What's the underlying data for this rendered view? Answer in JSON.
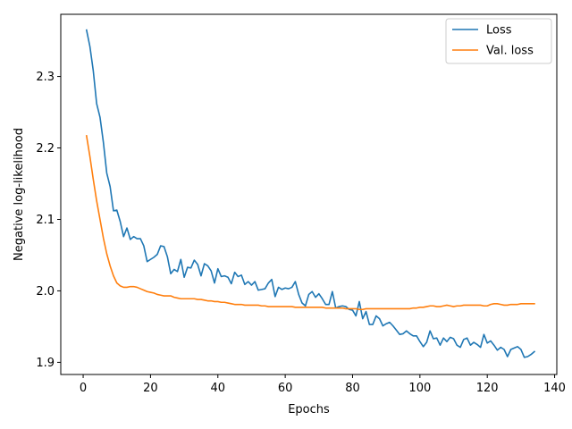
{
  "chart_data": {
    "type": "line",
    "xlabel": "Epochs",
    "ylabel": "Negative log-likelihood",
    "xlim": [
      -6.65,
      140.65
    ],
    "ylim": [
      1.883,
      2.387
    ],
    "xticks": [
      0,
      20,
      40,
      60,
      80,
      100,
      120,
      140
    ],
    "yticks": [
      1.9,
      2.0,
      2.1,
      2.2,
      2.3
    ],
    "ytick_labels": [
      "1.9",
      "2.0",
      "2.1",
      "2.2",
      "2.3"
    ],
    "grid": false,
    "legend_position": "top-right",
    "series": [
      {
        "name": "Loss",
        "color": "#1f77b4",
        "x": [
          1,
          2,
          3,
          4,
          5,
          6,
          7,
          8,
          9,
          10,
          11,
          12,
          13,
          14,
          15,
          16,
          17,
          18,
          19,
          20,
          21,
          22,
          23,
          24,
          25,
          26,
          27,
          28,
          29,
          30,
          31,
          32,
          33,
          34,
          35,
          36,
          37,
          38,
          39,
          40,
          41,
          42,
          43,
          44,
          45,
          46,
          47,
          48,
          49,
          50,
          51,
          52,
          53,
          54,
          55,
          56,
          57,
          58,
          59,
          60,
          61,
          62,
          63,
          64,
          65,
          66,
          67,
          68,
          69,
          70,
          71,
          72,
          73,
          74,
          75,
          76,
          77,
          78,
          79,
          80,
          81,
          82,
          83,
          84,
          85,
          86,
          87,
          88,
          89,
          90,
          91,
          92,
          93,
          94,
          95,
          96,
          97,
          98,
          99,
          100,
          101,
          102,
          103,
          104,
          105,
          106,
          107,
          108,
          109,
          110,
          111,
          112,
          113,
          114,
          115,
          116,
          117,
          118,
          119,
          120,
          121,
          122,
          123,
          124,
          125,
          126,
          127,
          128,
          129,
          130,
          131,
          132,
          133,
          134
        ],
        "values": [
          2.365,
          2.342,
          2.308,
          2.262,
          2.243,
          2.208,
          2.165,
          2.146,
          2.112,
          2.113,
          2.097,
          2.076,
          2.088,
          2.072,
          2.076,
          2.073,
          2.073,
          2.063,
          2.041,
          2.044,
          2.047,
          2.051,
          2.063,
          2.062,
          2.048,
          2.024,
          2.03,
          2.027,
          2.044,
          2.019,
          2.033,
          2.032,
          2.043,
          2.037,
          2.021,
          2.038,
          2.035,
          2.028,
          2.011,
          2.031,
          2.02,
          2.021,
          2.019,
          2.01,
          2.026,
          2.02,
          2.022,
          2.009,
          2.013,
          2.008,
          2.013,
          2.001,
          2.002,
          2.003,
          2.011,
          2.016,
          1.992,
          2.005,
          2.002,
          2.004,
          2.003,
          2.005,
          2.013,
          1.995,
          1.983,
          1.979,
          1.995,
          1.999,
          1.991,
          1.996,
          1.989,
          1.981,
          1.981,
          1.999,
          1.976,
          1.978,
          1.979,
          1.978,
          1.974,
          1.973,
          1.965,
          1.985,
          1.961,
          1.971,
          1.953,
          1.953,
          1.965,
          1.961,
          1.951,
          1.954,
          1.956,
          1.951,
          1.945,
          1.939,
          1.94,
          1.944,
          1.94,
          1.937,
          1.937,
          1.929,
          1.922,
          1.928,
          1.944,
          1.933,
          1.934,
          1.924,
          1.934,
          1.929,
          1.935,
          1.933,
          1.924,
          1.921,
          1.932,
          1.934,
          1.924,
          1.928,
          1.925,
          1.921,
          1.939,
          1.927,
          1.93,
          1.924,
          1.917,
          1.921,
          1.918,
          1.908,
          1.918,
          1.92,
          1.922,
          1.918,
          1.907,
          1.908,
          1.911,
          1.915
        ]
      },
      {
        "name": "Val. loss",
        "color": "#ff7f0e",
        "x": [
          1,
          2,
          3,
          4,
          5,
          6,
          7,
          8,
          9,
          10,
          11,
          12,
          13,
          14,
          15,
          16,
          17,
          18,
          19,
          20,
          21,
          22,
          23,
          24,
          25,
          26,
          27,
          28,
          29,
          30,
          31,
          32,
          33,
          34,
          35,
          36,
          37,
          38,
          39,
          40,
          41,
          42,
          43,
          44,
          45,
          46,
          47,
          48,
          49,
          50,
          51,
          52,
          53,
          54,
          55,
          56,
          57,
          58,
          59,
          60,
          61,
          62,
          63,
          64,
          65,
          66,
          67,
          68,
          69,
          70,
          71,
          72,
          73,
          74,
          75,
          76,
          77,
          78,
          79,
          80,
          81,
          82,
          83,
          84,
          85,
          86,
          87,
          88,
          89,
          90,
          91,
          92,
          93,
          94,
          95,
          96,
          97,
          98,
          99,
          100,
          101,
          102,
          103,
          104,
          105,
          106,
          107,
          108,
          109,
          110,
          111,
          112,
          113,
          114,
          115,
          116,
          117,
          118,
          119,
          120,
          121,
          122,
          123,
          124,
          125,
          126,
          127,
          128,
          129,
          130,
          131,
          132,
          133,
          134
        ],
        "values": [
          2.217,
          2.188,
          2.156,
          2.126,
          2.1,
          2.074,
          2.052,
          2.035,
          2.021,
          2.011,
          2.007,
          2.005,
          2.005,
          2.006,
          2.006,
          2.005,
          2.003,
          2.001,
          1.999,
          1.998,
          1.997,
          1.995,
          1.994,
          1.993,
          1.993,
          1.993,
          1.991,
          1.99,
          1.989,
          1.989,
          1.989,
          1.989,
          1.989,
          1.988,
          1.988,
          1.987,
          1.986,
          1.986,
          1.985,
          1.985,
          1.984,
          1.984,
          1.983,
          1.982,
          1.981,
          1.981,
          1.981,
          1.98,
          1.98,
          1.98,
          1.98,
          1.98,
          1.979,
          1.979,
          1.978,
          1.978,
          1.978,
          1.978,
          1.978,
          1.978,
          1.978,
          1.978,
          1.977,
          1.977,
          1.977,
          1.977,
          1.977,
          1.977,
          1.977,
          1.977,
          1.977,
          1.976,
          1.976,
          1.976,
          1.976,
          1.976,
          1.976,
          1.975,
          1.975,
          1.975,
          1.975,
          1.974,
          1.974,
          1.975,
          1.975,
          1.975,
          1.975,
          1.975,
          1.975,
          1.975,
          1.975,
          1.975,
          1.975,
          1.975,
          1.975,
          1.975,
          1.975,
          1.976,
          1.976,
          1.977,
          1.977,
          1.978,
          1.979,
          1.979,
          1.978,
          1.978,
          1.979,
          1.98,
          1.979,
          1.978,
          1.979,
          1.979,
          1.98,
          1.98,
          1.98,
          1.98,
          1.98,
          1.98,
          1.979,
          1.979,
          1.981,
          1.982,
          1.982,
          1.981,
          1.98,
          1.98,
          1.981,
          1.981,
          1.981,
          1.982,
          1.982,
          1.982,
          1.982,
          1.982
        ]
      }
    ]
  }
}
